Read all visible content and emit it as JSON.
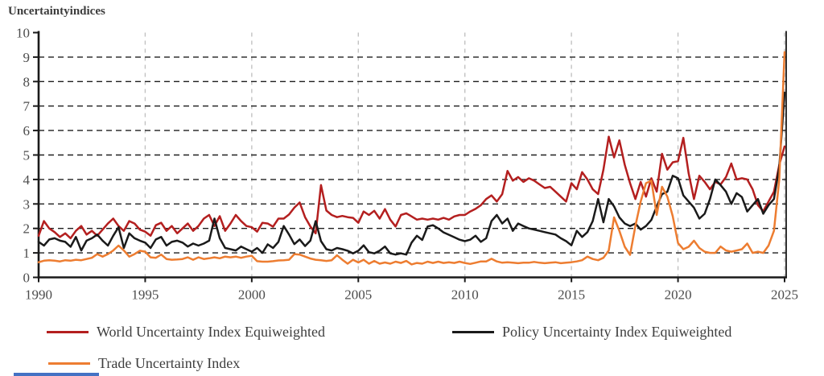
{
  "title": "Uncertaintyindices",
  "legend": [
    {
      "label": "World Uncertainty Index Equiweighted",
      "color": "#b41f1f"
    },
    {
      "label": "Policy Uncertainty Index Equiweighted",
      "color": "#1a1a1a"
    },
    {
      "label": "Trade Uncertainty Index",
      "color": "#ed7d31"
    }
  ],
  "axes": {
    "y_ticks": [
      "0",
      "1",
      "2",
      "3",
      "4",
      "5",
      "6",
      "7",
      "8",
      "9",
      "10"
    ],
    "x_ticks": [
      "1990",
      "1995",
      "2000",
      "2005",
      "2010",
      "2015",
      "2020",
      "2025"
    ]
  },
  "colors": {
    "axis": "#1a1a1a",
    "h_grid": "#1f1f1f",
    "v_grid": "#c2c2c2",
    "tick_label": "#4c4c4c",
    "bottom_line": "#4472c4"
  },
  "chart_data": {
    "type": "line",
    "title": "Uncertaintyindices",
    "xlabel": "",
    "ylabel": "",
    "xlim": [
      1990,
      2025
    ],
    "ylim": [
      0,
      10
    ],
    "x_ticks": [
      1990,
      1995,
      2000,
      2005,
      2010,
      2015,
      2020,
      2025
    ],
    "y_ticks": [
      0,
      1,
      2,
      3,
      4,
      5,
      6,
      7,
      8,
      9,
      10
    ],
    "grid": {
      "horizontal": "black dashed at 1-9",
      "vertical": "gray dashed at 5-year ticks"
    },
    "legend_position": "bottom",
    "x_start": 1990.0,
    "x_step": 0.25,
    "frequency": "quarterly",
    "series": [
      {
        "name": "World Uncertainty Index Equiweighted",
        "color": "#b41f1f",
        "values": [
          1.7,
          2.3,
          2.0,
          1.85,
          1.65,
          1.8,
          1.6,
          1.9,
          2.1,
          1.75,
          1.9,
          1.7,
          1.95,
          2.2,
          2.4,
          2.1,
          1.9,
          2.3,
          2.2,
          1.95,
          1.87,
          1.7,
          2.13,
          2.23,
          1.9,
          2.1,
          1.8,
          2.0,
          2.2,
          1.9,
          2.1,
          2.4,
          2.55,
          2.1,
          2.5,
          1.9,
          2.2,
          2.55,
          2.3,
          2.1,
          2.05,
          1.87,
          2.23,
          2.2,
          2.07,
          2.4,
          2.4,
          2.57,
          2.85,
          3.06,
          2.46,
          2.08,
          1.8,
          3.77,
          2.73,
          2.55,
          2.46,
          2.51,
          2.46,
          2.43,
          2.23,
          2.69,
          2.55,
          2.72,
          2.4,
          2.79,
          2.36,
          2.08,
          2.55,
          2.62,
          2.49,
          2.36,
          2.4,
          2.36,
          2.4,
          2.36,
          2.43,
          2.36,
          2.49,
          2.55,
          2.55,
          2.69,
          2.8,
          2.95,
          3.2,
          3.35,
          3.1,
          3.4,
          4.35,
          3.95,
          4.1,
          3.9,
          4.05,
          3.95,
          3.8,
          3.65,
          3.7,
          3.5,
          3.3,
          3.1,
          3.85,
          3.6,
          4.3,
          4.0,
          3.6,
          3.4,
          4.4,
          5.75,
          4.9,
          5.6,
          4.6,
          3.85,
          3.2,
          3.9,
          3.3,
          4.05,
          3.5,
          5.05,
          4.4,
          4.7,
          4.75,
          5.7,
          4.25,
          3.2,
          4.15,
          3.9,
          3.6,
          3.9,
          3.8,
          4.1,
          4.65,
          4.0,
          4.05,
          4.0,
          3.6,
          2.95,
          2.7,
          3.1,
          3.5,
          4.6,
          5.35
        ]
      },
      {
        "name": "Policy Uncertainty Index Equiweighted",
        "color": "#1a1a1a",
        "values": [
          1.45,
          1.3,
          1.55,
          1.6,
          1.5,
          1.45,
          1.25,
          1.65,
          1.1,
          1.5,
          1.6,
          1.75,
          1.5,
          1.3,
          1.7,
          2.05,
          1.2,
          1.8,
          1.6,
          1.5,
          1.42,
          1.2,
          1.55,
          1.65,
          1.3,
          1.45,
          1.5,
          1.42,
          1.26,
          1.38,
          1.3,
          1.38,
          1.5,
          2.4,
          1.6,
          1.2,
          1.15,
          1.1,
          1.26,
          1.15,
          1.05,
          1.2,
          1.0,
          1.35,
          1.2,
          1.45,
          2.1,
          1.75,
          1.36,
          1.55,
          1.28,
          1.5,
          2.3,
          1.48,
          1.15,
          1.1,
          1.2,
          1.15,
          1.09,
          0.98,
          1.09,
          1.31,
          1.03,
          0.98,
          1.09,
          1.26,
          0.98,
          0.93,
          0.98,
          0.93,
          1.42,
          1.7,
          1.53,
          2.08,
          2.13,
          2.0,
          1.84,
          1.74,
          1.64,
          1.54,
          1.48,
          1.54,
          1.7,
          1.45,
          1.6,
          2.3,
          2.55,
          2.2,
          2.4,
          1.9,
          2.2,
          2.1,
          2.0,
          1.95,
          1.9,
          1.85,
          1.8,
          1.75,
          1.6,
          1.48,
          1.31,
          1.9,
          1.65,
          1.85,
          2.3,
          3.2,
          2.25,
          3.2,
          2.9,
          2.45,
          2.2,
          2.1,
          2.2,
          1.95,
          2.1,
          2.35,
          2.9,
          3.4,
          3.5,
          4.15,
          4.05,
          3.35,
          3.1,
          2.85,
          2.4,
          2.6,
          3.2,
          4.0,
          3.77,
          3.5,
          3.0,
          3.44,
          3.28,
          2.69,
          2.95,
          3.2,
          2.6,
          2.95,
          3.2,
          4.5,
          7.55
        ]
      },
      {
        "name": "Trade Uncertainty Index",
        "color": "#ed7d31",
        "values": [
          0.62,
          0.68,
          0.7,
          0.68,
          0.65,
          0.7,
          0.68,
          0.72,
          0.7,
          0.75,
          0.8,
          0.95,
          0.85,
          0.95,
          1.1,
          1.3,
          1.1,
          0.85,
          0.95,
          1.09,
          1.05,
          0.82,
          0.8,
          0.93,
          0.75,
          0.72,
          0.73,
          0.75,
          0.82,
          0.72,
          0.82,
          0.75,
          0.78,
          0.82,
          0.78,
          0.85,
          0.82,
          0.85,
          0.8,
          0.85,
          0.88,
          0.66,
          0.64,
          0.64,
          0.66,
          0.69,
          0.7,
          0.72,
          0.95,
          0.93,
          0.85,
          0.77,
          0.72,
          0.7,
          0.67,
          0.7,
          0.9,
          0.72,
          0.56,
          0.72,
          0.61,
          0.72,
          0.56,
          0.67,
          0.56,
          0.61,
          0.56,
          0.64,
          0.59,
          0.67,
          0.53,
          0.59,
          0.56,
          0.64,
          0.59,
          0.64,
          0.59,
          0.62,
          0.59,
          0.64,
          0.59,
          0.55,
          0.6,
          0.65,
          0.65,
          0.76,
          0.65,
          0.6,
          0.62,
          0.6,
          0.58,
          0.6,
          0.6,
          0.63,
          0.6,
          0.58,
          0.6,
          0.62,
          0.58,
          0.6,
          0.62,
          0.65,
          0.7,
          0.85,
          0.75,
          0.7,
          0.8,
          1.1,
          2.45,
          1.9,
          1.25,
          0.92,
          2.1,
          3.1,
          3.85,
          3.95,
          2.55,
          3.7,
          3.3,
          2.5,
          1.4,
          1.15,
          1.25,
          1.5,
          1.2,
          1.05,
          1.0,
          1.0,
          1.26,
          1.1,
          1.05,
          1.1,
          1.15,
          1.38,
          1.0,
          1.05,
          1.0,
          1.3,
          1.9,
          4.0,
          9.2
        ]
      }
    ]
  }
}
